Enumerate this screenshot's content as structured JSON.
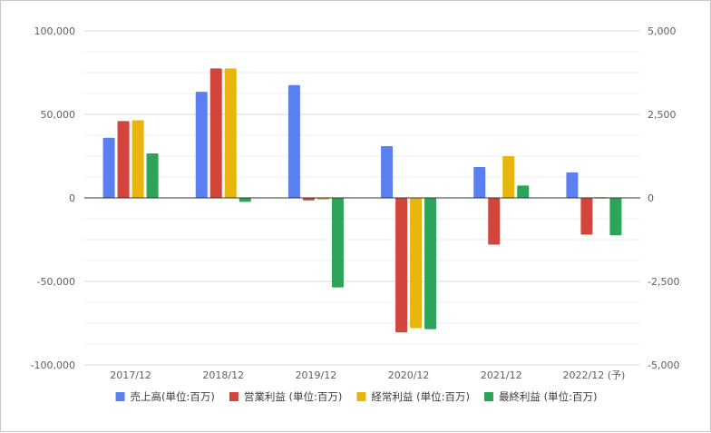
{
  "chart_data": {
    "type": "bar",
    "categories": [
      "2017/12",
      "2018/12",
      "2019/12",
      "2020/12",
      "2021/12",
      "2022/12 (予)"
    ],
    "series": [
      {
        "name": "売上高(単位:百万)",
        "axis": "left",
        "color": "#5b7ff0",
        "values": [
          36000,
          63500,
          67500,
          31000,
          18500,
          15200
        ]
      },
      {
        "name": "営業利益 (単位:百万)",
        "axis": "left",
        "color": "#d2453d",
        "values": [
          46000,
          77500,
          -1500,
          -80500,
          -28000,
          -22000
        ]
      },
      {
        "name": "経常利益 (単位:百万)",
        "axis": "left",
        "color": "#e8b50c",
        "values": [
          46500,
          77500,
          -1000,
          -78000,
          25000,
          500
        ]
      },
      {
        "name": "最終利益 (単位:百万)",
        "axis": "right",
        "color": "#2ea35a",
        "values": [
          1330,
          -120,
          -2680,
          -3930,
          370,
          -1120
        ]
      }
    ],
    "y_left": {
      "range": [
        -100000,
        100000
      ],
      "ticks": [
        "100,000",
        "50,000",
        "0",
        "-50,000",
        "-100,000"
      ]
    },
    "y_right": {
      "range": [
        -5000,
        5000
      ],
      "ticks": [
        "5,000",
        "2,500",
        "0",
        "-2,500",
        "-5,000"
      ]
    },
    "grid": true,
    "legend_position": "bottom"
  }
}
